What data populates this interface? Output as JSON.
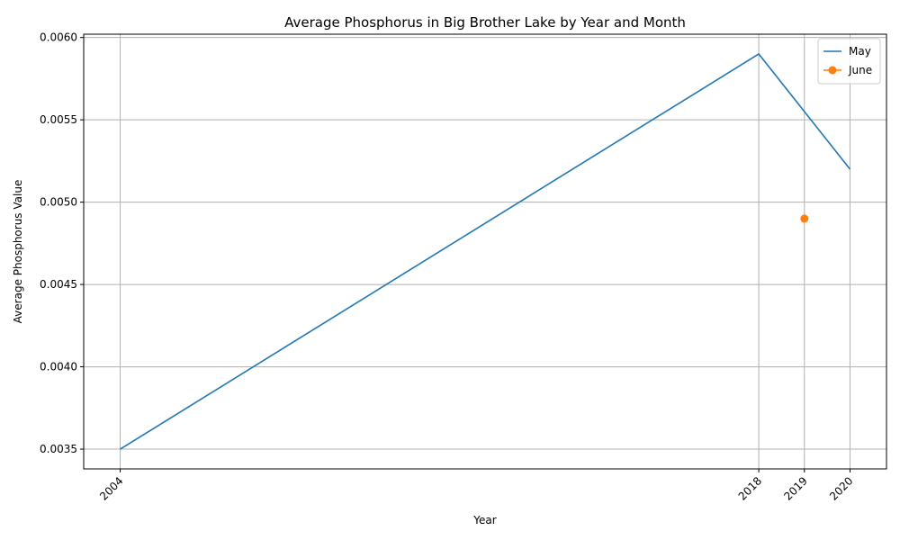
{
  "chart_data": {
    "type": "line",
    "title": "Average Phosphorus in Big Brother Lake by Year and Month",
    "xlabel": "Year",
    "ylabel": "Average Phosphorus Value",
    "x_ticks": [
      "2004",
      "2018",
      "2019",
      "2020"
    ],
    "x_tick_values": [
      2004,
      2018,
      2019,
      2020
    ],
    "y_ticks": [
      "0.0035",
      "0.0040",
      "0.0045",
      "0.0050",
      "0.0055",
      "0.0060"
    ],
    "y_tick_values": [
      0.0035,
      0.004,
      0.0045,
      0.005,
      0.0055,
      0.006
    ],
    "xlim": [
      2003.2,
      2020.8
    ],
    "ylim": [
      0.00338,
      0.00602
    ],
    "grid": true,
    "legend_position": "top-right",
    "series": [
      {
        "name": "May",
        "color": "#1f77b4",
        "marker": "none",
        "points": [
          {
            "x": 2004,
            "y": 0.0035
          },
          {
            "x": 2018,
            "y": 0.0059
          },
          {
            "x": 2020,
            "y": 0.0052
          }
        ]
      },
      {
        "name": "June",
        "color": "#ff7f0e",
        "marker": "circle",
        "points": [
          {
            "x": 2019,
            "y": 0.0049
          }
        ]
      }
    ]
  }
}
